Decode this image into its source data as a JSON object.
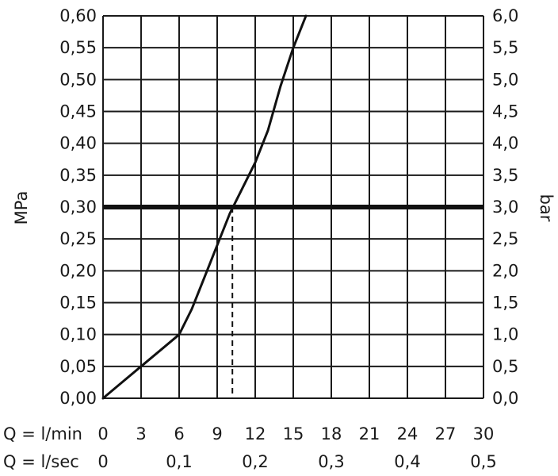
{
  "chart_data": {
    "type": "line",
    "title": "",
    "y_left_label": "MPa",
    "y_right_label": "bar",
    "ylim": [
      0,
      0.6
    ],
    "y_left_ticks": [
      "0,00",
      "0,05",
      "0,10",
      "0,15",
      "0,20",
      "0,25",
      "0,30",
      "0,35",
      "0,40",
      "0,45",
      "0,50",
      "0,55",
      "0,60"
    ],
    "y_right_ticks": [
      "0,0",
      "0,5",
      "1,0",
      "1,5",
      "2,0",
      "2,5",
      "3,0",
      "3,5",
      "4,0",
      "4,5",
      "5,0",
      "5,5",
      "6,0"
    ],
    "xlim": [
      0,
      30
    ],
    "x_label_primary": "Q = l/min",
    "x_ticks_primary": [
      "0",
      "3",
      "6",
      "9",
      "12",
      "15",
      "18",
      "21",
      "24",
      "27",
      "30"
    ],
    "x_label_secondary": "Q = l/sec",
    "x_ticks_secondary": [
      "0",
      "0,1",
      "0,2",
      "0,3",
      "0,4",
      "0,5"
    ],
    "grid": true,
    "series": [
      {
        "x": [
          0,
          1.5,
          3,
          4.5,
          6,
          7,
          8,
          9,
          10,
          11,
          12,
          13,
          14,
          15,
          16
        ],
        "y": [
          0.0,
          0.025,
          0.05,
          0.075,
          0.1,
          0.14,
          0.19,
          0.24,
          0.29,
          0.33,
          0.37,
          0.42,
          0.49,
          0.55,
          0.6
        ]
      }
    ],
    "reference_line": {
      "y": 0.3
    },
    "marker": {
      "x": 10.2,
      "y": 0.3
    }
  }
}
